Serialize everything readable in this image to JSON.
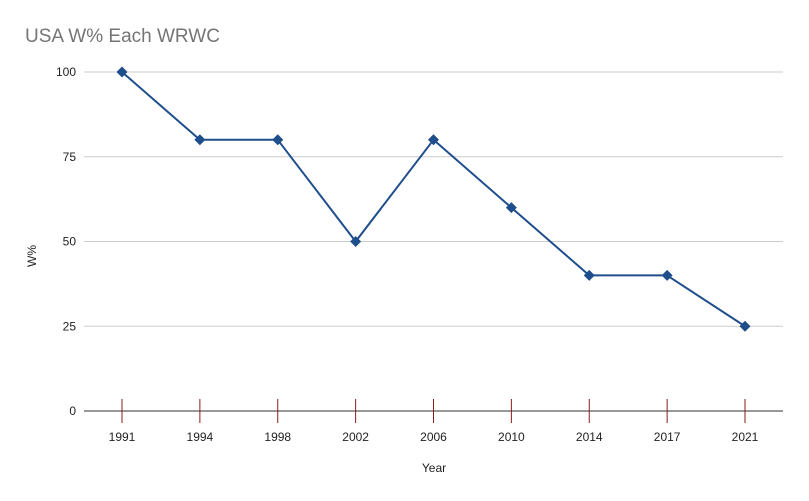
{
  "chart_data": {
    "type": "line",
    "title": "USA W% Each WRWC",
    "xlabel": "Year",
    "ylabel": "W%",
    "categories": [
      "1991",
      "1994",
      "1998",
      "2002",
      "2006",
      "2010",
      "2014",
      "2017",
      "2021"
    ],
    "series": [
      {
        "values": [
          100,
          80,
          80,
          50,
          80,
          60,
          40,
          40,
          25
        ]
      }
    ],
    "ylim": [
      0,
      100
    ],
    "yticks": [
      0,
      25,
      50,
      75,
      100
    ],
    "grid": true,
    "legend": "none",
    "colors": {
      "line": "#1f4e8c",
      "marker": "#1f4e8c",
      "grid": "#cccccc",
      "baseline": "#333333",
      "x_tick_marks": "#8b1a1a",
      "title": "#757575"
    },
    "marker": "diamond"
  }
}
